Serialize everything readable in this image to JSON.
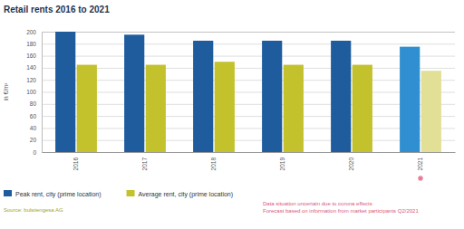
{
  "chart_data": {
    "type": "bar",
    "title": "Retail rents 2016 to 2021",
    "y_label": "in €/m²",
    "categories": [
      "2016",
      "2017",
      "2018",
      "2019",
      "2020",
      "2021"
    ],
    "series": [
      {
        "name": "Peak rent, city (prime location)",
        "color": "#1f5c9e",
        "colors": [
          "#1f5c9e",
          "#1f5c9e",
          "#1f5c9e",
          "#1f5c9e",
          "#1f5c9e",
          "#2f8fd0"
        ],
        "values": [
          200,
          195,
          185,
          185,
          185,
          175
        ]
      },
      {
        "name": "Average rent, city (prime location)",
        "color": "#c3c12c",
        "colors": [
          "#c3c12c",
          "#c3c12c",
          "#c3c12c",
          "#c3c12c",
          "#c3c12c",
          "#e2df97"
        ],
        "values": [
          145,
          145,
          150,
          145,
          145,
          135
        ]
      }
    ],
    "ylim": [
      0,
      200
    ],
    "yticks": [
      0,
      20,
      40,
      60,
      80,
      100,
      120,
      140,
      160,
      180,
      200
    ],
    "grid": true,
    "legend": "bottom",
    "source": "Source: bulwiengesa AG",
    "annotations": [
      "Data situation uncertain due to corona effects",
      "Forecast based on information from market participants Q2/2021"
    ]
  }
}
